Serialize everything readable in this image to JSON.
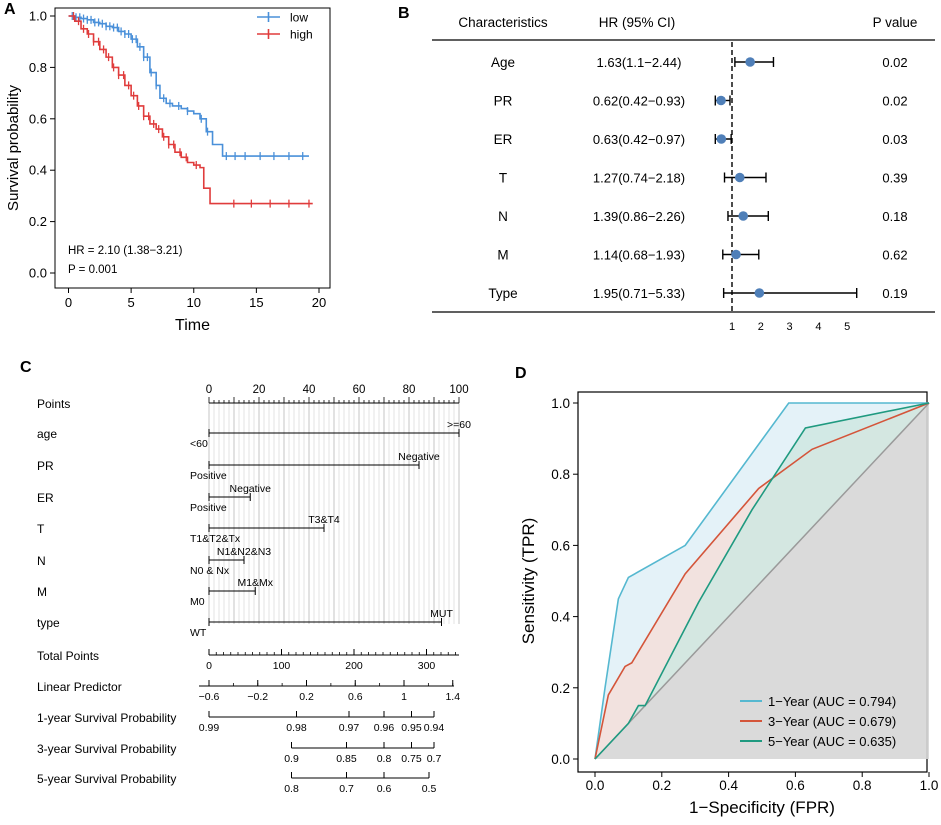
{
  "chart_data": [
    {
      "panel": "A",
      "type": "line",
      "subtype": "kaplan-meier",
      "xlabel": "Time",
      "ylabel": "Survival probability",
      "xlim": [
        0,
        20
      ],
      "ylim": [
        0,
        1
      ],
      "xticks": [
        "0",
        "5",
        "10",
        "15",
        "20"
      ],
      "yticks": [
        "0.0",
        "0.2",
        "0.4",
        "0.6",
        "0.8",
        "1.0"
      ],
      "legend": [
        "low",
        "high"
      ],
      "legend_position": "top-right",
      "annotations": [
        "HR = 2.10 (1.38−3.21)",
        "P = 0.001"
      ],
      "series": [
        {
          "name": "low",
          "color": "#4a90d9",
          "points": [
            [
              0,
              1.0
            ],
            [
              0.5,
              0.995
            ],
            [
              1,
              0.99
            ],
            [
              1.5,
              0.985
            ],
            [
              2,
              0.975
            ],
            [
              2.5,
              0.97
            ],
            [
              3,
              0.96
            ],
            [
              3.5,
              0.955
            ],
            [
              4,
              0.94
            ],
            [
              4.5,
              0.93
            ],
            [
              5,
              0.91
            ],
            [
              5.5,
              0.88
            ],
            [
              6,
              0.84
            ],
            [
              6.5,
              0.78
            ],
            [
              7,
              0.73
            ],
            [
              7.3,
              0.68
            ],
            [
              7.8,
              0.66
            ],
            [
              8.3,
              0.65
            ],
            [
              9,
              0.64
            ],
            [
              9.5,
              0.63
            ],
            [
              10,
              0.62
            ],
            [
              10.5,
              0.6
            ],
            [
              11,
              0.55
            ],
            [
              11.5,
              0.5
            ],
            [
              12.3,
              0.455
            ],
            [
              19.2,
              0.455
            ]
          ],
          "censor_times": [
            0.3,
            0.6,
            0.9,
            1.2,
            1.5,
            1.8,
            2.1,
            2.4,
            2.7,
            3.0,
            3.3,
            3.6,
            3.9,
            4.2,
            4.5,
            4.8,
            5.1,
            5.4,
            5.7,
            6.0,
            6.3,
            6.6,
            7.0,
            7.6,
            8.1,
            8.8,
            9.5,
            10.6,
            11.1,
            12.6,
            13.3,
            14.1,
            15.3,
            16.4,
            17.6,
            18.7
          ]
        },
        {
          "name": "high",
          "color": "#e03c3c",
          "points": [
            [
              0,
              1.0
            ],
            [
              0.5,
              0.98
            ],
            [
              1,
              0.95
            ],
            [
              1.5,
              0.93
            ],
            [
              2,
              0.9
            ],
            [
              2.5,
              0.87
            ],
            [
              3,
              0.84
            ],
            [
              3.5,
              0.8
            ],
            [
              4,
              0.77
            ],
            [
              4.5,
              0.73
            ],
            [
              5,
              0.69
            ],
            [
              5.5,
              0.65
            ],
            [
              6,
              0.61
            ],
            [
              6.5,
              0.58
            ],
            [
              7,
              0.56
            ],
            [
              7.5,
              0.53
            ],
            [
              8,
              0.5
            ],
            [
              8.5,
              0.47
            ],
            [
              9,
              0.45
            ],
            [
              9.5,
              0.43
            ],
            [
              10,
              0.42
            ],
            [
              10.5,
              0.41
            ],
            [
              10.8,
              0.33
            ],
            [
              11.3,
              0.27
            ],
            [
              19.5,
              0.27
            ]
          ],
          "censor_times": [
            0.4,
            0.8,
            1.2,
            1.6,
            2.0,
            2.4,
            2.8,
            3.2,
            3.6,
            4.0,
            4.4,
            4.8,
            5.2,
            5.6,
            6.0,
            6.4,
            6.8,
            7.2,
            7.6,
            8.0,
            8.4,
            8.9,
            9.4,
            10.2,
            13.2,
            14.6,
            16.1,
            17.6,
            19.2
          ]
        }
      ]
    },
    {
      "panel": "B",
      "type": "forest",
      "columns": [
        "Characteristics",
        "HR (95% CI)",
        "P value"
      ],
      "xticks": [
        "1",
        "2",
        "3",
        "4",
        "5"
      ],
      "reference_line": 1,
      "point_color": "#4f7fb8",
      "rows": [
        {
          "name": "Age",
          "hr_text": "1.63(1.1−2.44)",
          "hr": 1.63,
          "lo": 1.1,
          "hi": 2.44,
          "p": "0.02"
        },
        {
          "name": "PR",
          "hr_text": "0.62(0.42−0.93)",
          "hr": 0.62,
          "lo": 0.42,
          "hi": 0.93,
          "p": "0.02"
        },
        {
          "name": "ER",
          "hr_text": "0.63(0.42−0.97)",
          "hr": 0.63,
          "lo": 0.42,
          "hi": 0.97,
          "p": "0.03"
        },
        {
          "name": "T",
          "hr_text": "1.27(0.74−2.18)",
          "hr": 1.27,
          "lo": 0.74,
          "hi": 2.18,
          "p": "0.39"
        },
        {
          "name": "N",
          "hr_text": "1.39(0.86−2.26)",
          "hr": 1.39,
          "lo": 0.86,
          "hi": 2.26,
          "p": "0.18"
        },
        {
          "name": "M",
          "hr_text": "1.14(0.68−1.93)",
          "hr": 1.14,
          "lo": 0.68,
          "hi": 1.93,
          "p": "0.62"
        },
        {
          "name": "Type",
          "hr_text": "1.95(0.71−5.33)",
          "hr": 1.95,
          "lo": 0.71,
          "hi": 5.33,
          "p": "0.19"
        }
      ]
    },
    {
      "panel": "C",
      "type": "nomogram",
      "rows": [
        {
          "label": "Points",
          "kind": "axis",
          "min": 0,
          "max": 100,
          "ticks": [
            "0",
            "20",
            "40",
            "60",
            "80",
            "100"
          ]
        },
        {
          "label": "age",
          "kind": "var",
          "from": 0,
          "to": 100,
          "levels": [
            {
              "text": "<60",
              "at": 0,
              "side": "below"
            },
            {
              "text": ">=60",
              "at": 100,
              "side": "above"
            }
          ]
        },
        {
          "label": "PR",
          "kind": "var",
          "from": 0,
          "to": 84,
          "levels": [
            {
              "text": "Positive",
              "at": 0,
              "side": "below"
            },
            {
              "text": "Negative",
              "at": 84,
              "side": "above"
            }
          ]
        },
        {
          "label": "ER",
          "kind": "var",
          "from": 0,
          "to": 16.5,
          "levels": [
            {
              "text": "Positive",
              "at": 0,
              "side": "below"
            },
            {
              "text": "Negative",
              "at": 16.5,
              "side": "above"
            }
          ]
        },
        {
          "label": "T",
          "kind": "var",
          "from": 0,
          "to": 46,
          "levels": [
            {
              "text": "T1&T2&Tx",
              "at": 0,
              "side": "below"
            },
            {
              "text": "T3&T4",
              "at": 46,
              "side": "above"
            }
          ]
        },
        {
          "label": "N",
          "kind": "var",
          "from": 0,
          "to": 14,
          "levels": [
            {
              "text": "N0 & Nx",
              "at": 0,
              "side": "below"
            },
            {
              "text": "N1&N2&N3",
              "at": 14,
              "side": "above"
            }
          ]
        },
        {
          "label": "M",
          "kind": "var",
          "from": 0,
          "to": 18.5,
          "levels": [
            {
              "text": "M0",
              "at": 0,
              "side": "below"
            },
            {
              "text": "M1&Mx",
              "at": 18.5,
              "side": "above"
            }
          ]
        },
        {
          "label": "type",
          "kind": "var",
          "from": 0,
          "to": 93,
          "levels": [
            {
              "text": "WT",
              "at": 0,
              "side": "below"
            },
            {
              "text": "MUT",
              "at": 93,
              "side": "above"
            }
          ]
        },
        {
          "label": "Total Points",
          "kind": "scale",
          "ticks": [
            {
              "text": "0",
              "at": 0
            },
            {
              "text": "100",
              "at": 29
            },
            {
              "text": "200",
              "at": 58
            },
            {
              "text": "300",
              "at": 87
            }
          ],
          "end": 100
        },
        {
          "label": "Linear Predictor",
          "kind": "scale",
          "ticks": [
            {
              "text": "−0.6",
              "at": 0
            },
            {
              "text": "−0.2",
              "at": 19.5
            },
            {
              "text": "0.2",
              "at": 39
            },
            {
              "text": "0.6",
              "at": 58.5
            },
            {
              "text": "1",
              "at": 78
            },
            {
              "text": "1.4",
              "at": 97.5
            }
          ],
          "start": -4,
          "end": 98
        },
        {
          "label": "1-year Survival Probability",
          "kind": "scale",
          "ticks": [
            {
              "text": "0.99",
              "at": 0
            },
            {
              "text": "0.98",
              "at": 35
            },
            {
              "text": "0.97",
              "at": 56
            },
            {
              "text": "0.96",
              "at": 70
            },
            {
              "text": "0.95",
              "at": 81
            },
            {
              "text": "0.94",
              "at": 90
            }
          ],
          "start": 0,
          "end": 90
        },
        {
          "label": "3-year Survival Probability",
          "kind": "scale",
          "ticks": [
            {
              "text": "0.9",
              "at": 33
            },
            {
              "text": "0.85",
              "at": 55
            },
            {
              "text": "0.8",
              "at": 70
            },
            {
              "text": "0.75",
              "at": 81
            },
            {
              "text": "0.7",
              "at": 90
            }
          ],
          "start": 33,
          "end": 90
        },
        {
          "label": "5-year Survival Probability",
          "kind": "scale",
          "ticks": [
            {
              "text": "0.8",
              "at": 33
            },
            {
              "text": "0.7",
              "at": 55
            },
            {
              "text": "0.6",
              "at": 70
            },
            {
              "text": "0.5",
              "at": 88
            }
          ],
          "start": 33,
          "end": 88
        }
      ]
    },
    {
      "panel": "D",
      "type": "line",
      "subtype": "roc",
      "xlabel": "1−Specificity (FPR)",
      "ylabel": "Sensitivity (TPR)",
      "xlim": [
        0,
        1
      ],
      "ylim": [
        0,
        1
      ],
      "xticks": [
        "0.0",
        "0.2",
        "0.4",
        "0.6",
        "0.8",
        "1.0"
      ],
      "yticks": [
        "0.0",
        "0.2",
        "0.4",
        "0.6",
        "0.8",
        "1.0"
      ],
      "legend_position": "bottom-right",
      "series": [
        {
          "name": "1−Year (AUC = 0.794)",
          "color": "#55b8d0",
          "fill": "#dff0f7",
          "points": [
            [
              0,
              0
            ],
            [
              0.03,
              0.2
            ],
            [
              0.07,
              0.45
            ],
            [
              0.1,
              0.51
            ],
            [
              0.27,
              0.6
            ],
            [
              0.58,
              1.0
            ],
            [
              1.0,
              1.0
            ]
          ]
        },
        {
          "name": "3−Year (AUC = 0.679)",
          "color": "#d4553a",
          "fill": "#f5dfda",
          "points": [
            [
              0,
              0
            ],
            [
              0.04,
              0.18
            ],
            [
              0.09,
              0.26
            ],
            [
              0.11,
              0.27
            ],
            [
              0.27,
              0.52
            ],
            [
              0.49,
              0.76
            ],
            [
              0.65,
              0.87
            ],
            [
              1.0,
              1.0
            ]
          ]
        },
        {
          "name": "5−Year (AUC = 0.635)",
          "color": "#1f9a80",
          "fill": "#cfe7e2",
          "points": [
            [
              0,
              0
            ],
            [
              0.1,
              0.1
            ],
            [
              0.13,
              0.15
            ],
            [
              0.15,
              0.15
            ],
            [
              0.31,
              0.44
            ],
            [
              0.47,
              0.7
            ],
            [
              0.63,
              0.93
            ],
            [
              1.0,
              1.0
            ]
          ]
        }
      ]
    }
  ],
  "panels": {
    "A": {
      "label": "A"
    },
    "B": {
      "label": "B"
    },
    "C": {
      "label": "C"
    },
    "D": {
      "label": "D"
    }
  }
}
